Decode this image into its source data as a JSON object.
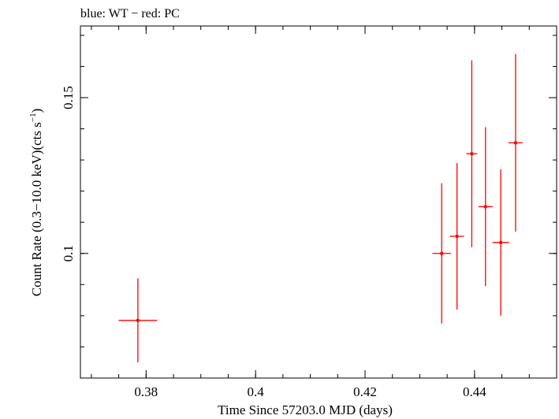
{
  "chart_data": {
    "type": "scatter",
    "title": "blue: WT − red: PC",
    "xlabel": "Time Since 57203.0 MJD (days)",
    "ylabel_main": "Count Rate (0.3−10.0 keV)(cts s",
    "ylabel_sup": "−1",
    "ylabel_close": ")",
    "xlim": [
      0.368,
      0.455
    ],
    "ylim": [
      0.06,
      0.173
    ],
    "xticks": [
      {
        "value": 0.38,
        "label": "0.38"
      },
      {
        "value": 0.4,
        "label": "0.4"
      },
      {
        "value": 0.42,
        "label": "0.42"
      },
      {
        "value": 0.44,
        "label": "0.44"
      }
    ],
    "yticks": [
      {
        "value": 0.1,
        "label": "0.1"
      },
      {
        "value": 0.15,
        "label": "0.15"
      }
    ],
    "x_minor_step": 0.005,
    "y_minor_step": 0.01,
    "grid": false,
    "series": [
      {
        "color": "#ff0000",
        "points": [
          {
            "x": 0.3785,
            "xerr": 0.0035,
            "y": 0.0785,
            "yerr_lo": 0.0135,
            "yerr_hi": 0.0135
          },
          {
            "x": 0.434,
            "xerr": 0.0017,
            "y": 0.1,
            "yerr_lo": 0.0225,
            "yerr_hi": 0.0225
          },
          {
            "x": 0.4368,
            "xerr": 0.0013,
            "y": 0.1055,
            "yerr_lo": 0.0235,
            "yerr_hi": 0.0235
          },
          {
            "x": 0.4395,
            "xerr": 0.001,
            "y": 0.132,
            "yerr_lo": 0.03,
            "yerr_hi": 0.03
          },
          {
            "x": 0.442,
            "xerr": 0.0013,
            "y": 0.115,
            "yerr_lo": 0.0255,
            "yerr_hi": 0.0255
          },
          {
            "x": 0.4448,
            "xerr": 0.0015,
            "y": 0.1035,
            "yerr_lo": 0.0235,
            "yerr_hi": 0.0235
          },
          {
            "x": 0.4475,
            "xerr": 0.0013,
            "y": 0.1355,
            "yerr_lo": 0.0285,
            "yerr_hi": 0.0285
          }
        ]
      }
    ]
  }
}
